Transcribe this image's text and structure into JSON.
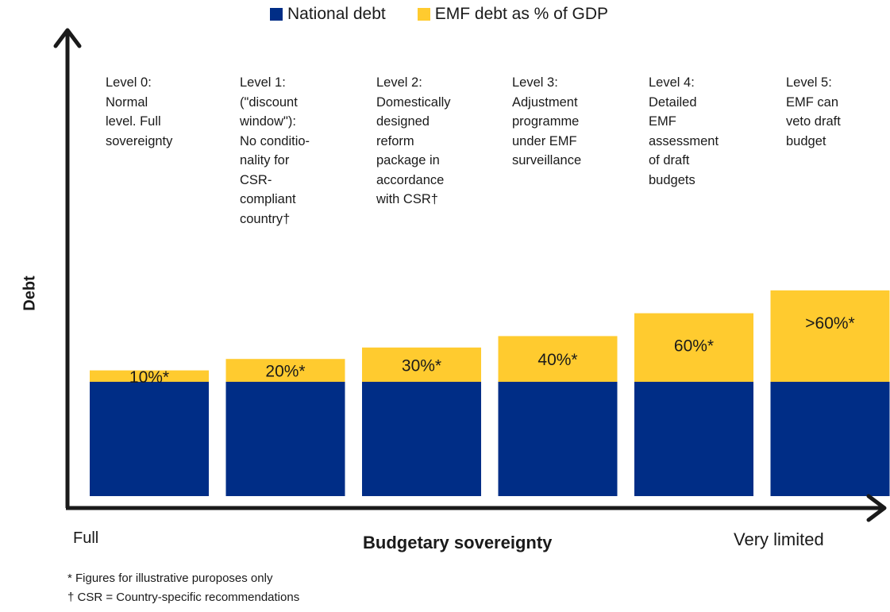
{
  "colors": {
    "national": "#002D86",
    "emf": "#FFCB2F",
    "axis": "#1a1a1a"
  },
  "legend": {
    "national_label": "National debt",
    "emf_label": "EMF debt as % of GDP"
  },
  "axes": {
    "ylabel": "Debt",
    "xlabel": "Budgetary sovereignty",
    "x_left": "Full",
    "x_right": "Very limited"
  },
  "levels": [
    "Level 0:\nNormal\nlevel. Full\nsovereignty",
    "Level 1:\n(\"discount\nwindow\"):\nNo conditio-\nnality for\nCSR-\ncompliant\ncountry†",
    "Level 2:\nDomestically\ndesigned\nreform\npackage in\naccordance\nwith CSR†",
    "Level 3:\nAdjustment\nprogramme\nunder EMF\nsurveillance",
    "Level 4:\nDetailed\nEMF\nassessment\nof draft\nbudgets",
    "Level 5:\nEMF can\nveto draft\nbudget"
  ],
  "footnotes": {
    "note1": "* Figures for illustrative puroposes only",
    "note2": "† CSR = Country-specific recommendations"
  },
  "chart_data": {
    "type": "bar",
    "stacked": true,
    "categories": [
      "Level 0",
      "Level 1",
      "Level 2",
      "Level 3",
      "Level 4",
      "Level 5"
    ],
    "series": [
      {
        "name": "National debt",
        "values": [
          100,
          100,
          100,
          100,
          100,
          100
        ]
      },
      {
        "name": "EMF debt as % of GDP",
        "values": [
          10,
          20,
          30,
          40,
          60,
          80
        ]
      }
    ],
    "data_labels": [
      "10%*",
      "20%*",
      "30%*",
      "40%*",
      "60%*",
      ">60%*"
    ],
    "xlabel": "Budgetary sovereignty",
    "ylabel": "Debt",
    "legend_position": "top",
    "grid": false
  }
}
